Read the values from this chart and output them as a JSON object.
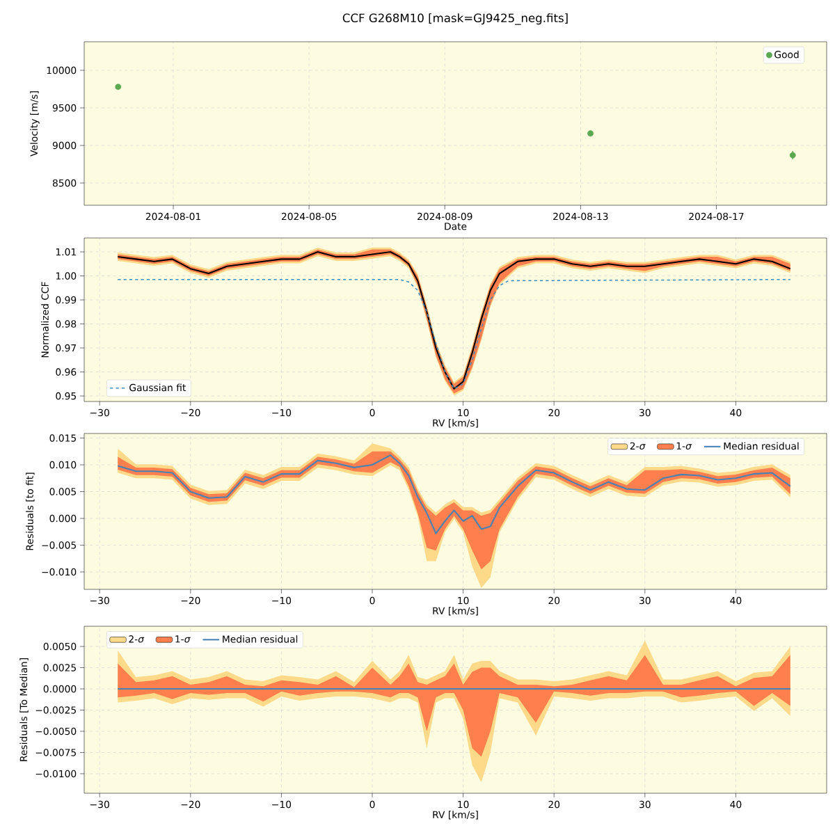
{
  "chart_data": [
    {
      "type": "scatter",
      "title": "CCF G268M10 [mask=GJ9425_neg.fits]",
      "xlabel": "Date",
      "ylabel": "Velocity [m/s]",
      "x": [
        "2024-07-30T09:00",
        "2024-08-13T07:00",
        "2024-08-19T06:00"
      ],
      "series": [
        {
          "name": "Good",
          "color": "#5aa84f",
          "values": [
            9780,
            9160,
            8870
          ],
          "errors": [
            25,
            25,
            55
          ]
        }
      ],
      "xlim": [
        "2024-07-29T09:00",
        "2024-08-20T06:00"
      ],
      "ylim": [
        8204,
        10380
      ],
      "xticks": [
        "2024-08-01",
        "2024-08-05",
        "2024-08-09",
        "2024-08-13",
        "2024-08-17"
      ],
      "yticks": [
        8500,
        9000,
        9500,
        10000
      ],
      "grid": true,
      "legend": "top right",
      "marker": "circle"
    },
    {
      "type": "line",
      "xlabel": "RV [km/s]",
      "ylabel": "Normalized CCF",
      "x": [
        -28,
        -26,
        -24,
        -22,
        -20,
        -18,
        -16,
        -14,
        -12,
        -10,
        -8,
        -6,
        -4,
        -2,
        0,
        2,
        3,
        4,
        5,
        6,
        7,
        8,
        9,
        10,
        11,
        12,
        13,
        14,
        16,
        18,
        20,
        22,
        24,
        26,
        28,
        30,
        32,
        34,
        36,
        38,
        40,
        42,
        44,
        46
      ],
      "series": [
        {
          "type": "area",
          "color": "#fdd98a",
          "values": [
            null,
            null,
            null,
            null,
            null,
            null,
            null,
            null,
            null,
            null,
            null,
            null,
            null,
            null,
            null,
            null,
            null,
            null,
            null,
            null,
            null,
            null,
            null,
            null,
            null,
            null,
            null,
            null,
            null,
            null,
            null,
            null,
            null,
            null,
            null,
            null,
            null,
            null,
            null,
            null,
            null,
            null,
            null,
            null
          ],
          "lower": [
            1.0062,
            1.0052,
            1.0042,
            1.0052,
            1.0012,
            0.9992,
            1.0022,
            1.0032,
            1.0042,
            1.0052,
            1.0052,
            1.0082,
            1.0062,
            1.0062,
            1.0072,
            1.0082,
            1.0062,
            1.0032,
            0.9952,
            0.9812,
            0.9662,
            0.9562,
            0.9502,
            0.9522,
            0.9612,
            0.9732,
            0.9872,
            0.9962,
            1.0032,
            1.0052,
            1.0052,
            1.0032,
            1.0022,
            1.0032,
            1.0022,
            1.0012,
            1.0032,
            1.0042,
            1.0052,
            1.0042,
            1.0032,
            1.0052,
            1.0042,
            1.0012
          ],
          "upper": [
            1.0098,
            1.0088,
            1.0078,
            1.0088,
            1.0048,
            1.0028,
            1.0058,
            1.0068,
            1.0078,
            1.0088,
            1.0088,
            1.0118,
            1.0098,
            1.0098,
            1.0118,
            1.0118,
            1.0098,
            1.0068,
            1.0008,
            0.9878,
            0.9728,
            0.9628,
            0.9558,
            0.9588,
            0.9708,
            0.9848,
            0.9968,
            1.0038,
            1.0078,
            1.0088,
            1.0088,
            1.0068,
            1.0058,
            1.0068,
            1.0058,
            1.0058,
            1.0068,
            1.0078,
            1.0088,
            1.0088,
            1.0068,
            1.0088,
            1.0088,
            1.0058
          ]
        },
        {
          "type": "area",
          "color": "#ff7f4f",
          "values": [
            null,
            null,
            null,
            null,
            null,
            null,
            null,
            null,
            null,
            null,
            null,
            null,
            null,
            null,
            null,
            null,
            null,
            null,
            null,
            null,
            null,
            null,
            null,
            null,
            null,
            null,
            null,
            null,
            null,
            null,
            null,
            null,
            null,
            null,
            null,
            null,
            null,
            null,
            null,
            null,
            null,
            null,
            null,
            null
          ],
          "lower": [
            1.007,
            1.006,
            1.005,
            1.006,
            1.002,
            1.0,
            1.003,
            1.004,
            1.005,
            1.006,
            1.006,
            1.009,
            1.007,
            1.007,
            1.008,
            1.009,
            1.007,
            1.004,
            0.996,
            0.982,
            0.967,
            0.957,
            0.951,
            0.953,
            0.962,
            0.974,
            0.988,
            0.997,
            1.004,
            1.006,
            1.006,
            1.004,
            1.003,
            1.004,
            1.003,
            1.002,
            1.004,
            1.005,
            1.006,
            1.005,
            1.004,
            1.006,
            1.005,
            1.002
          ],
          "upper": [
            1.009,
            1.008,
            1.007,
            1.008,
            1.004,
            1.002,
            1.005,
            1.006,
            1.007,
            1.008,
            1.008,
            1.011,
            1.009,
            1.009,
            1.011,
            1.011,
            1.009,
            1.006,
            1.0,
            0.987,
            0.972,
            0.962,
            0.955,
            0.958,
            0.97,
            0.984,
            0.996,
            1.003,
            1.007,
            1.008,
            1.008,
            1.006,
            1.005,
            1.006,
            1.005,
            1.005,
            1.006,
            1.007,
            1.008,
            1.008,
            1.006,
            1.008,
            1.008,
            1.005
          ]
        },
        {
          "type": "line",
          "color": "#000000",
          "values": [
            1.008,
            1.007,
            1.006,
            1.007,
            1.003,
            1.001,
            1.004,
            1.005,
            1.006,
            1.007,
            1.007,
            1.01,
            1.008,
            1.008,
            1.009,
            1.01,
            1.008,
            1.005,
            0.998,
            0.985,
            0.97,
            0.96,
            0.953,
            0.956,
            0.968,
            0.982,
            0.994,
            1.001,
            1.006,
            1.007,
            1.007,
            1.005,
            1.004,
            1.005,
            1.004,
            1.004,
            1.005,
            1.006,
            1.007,
            1.006,
            1.005,
            1.007,
            1.006,
            1.003
          ]
        },
        {
          "type": "line",
          "name": "Gaussian fit",
          "color": "#3a8bbf",
          "line_style": "dashed",
          "x": [
            -28,
            3,
            4,
            5,
            6,
            7,
            8,
            9,
            10,
            11,
            12,
            13,
            14,
            15,
            46
          ],
          "values": [
            0.9985,
            0.9985,
            0.9975,
            0.994,
            0.985,
            0.972,
            0.96,
            0.953,
            0.955,
            0.965,
            0.978,
            0.99,
            0.996,
            0.998,
            0.9985
          ]
        }
      ],
      "xlim": [
        -31.7,
        50.0
      ],
      "ylim": [
        0.9477,
        1.0158
      ],
      "xticks": [
        {
          "value": -30,
          "label": "−30"
        },
        {
          "value": -20,
          "label": "−20"
        },
        {
          "value": -10,
          "label": "−10"
        },
        0,
        10,
        20,
        30,
        40
      ],
      "yticks": [
        0.95,
        {
          "value": 0.96,
          "label": "0.96"
        },
        {
          "value": 0.97,
          "label": "0.97"
        },
        {
          "value": 0.98,
          "label": "0.98"
        },
        {
          "value": 0.99,
          "label": "0.99"
        },
        {
          "value": 1.0,
          "label": "1.00"
        },
        1.01
      ],
      "grid": true,
      "legend": "bottom left"
    },
    {
      "type": "line",
      "xlabel": "RV [km/s]",
      "ylabel": "Residuals [to fit]",
      "x": [
        -28,
        -26,
        -24,
        -22,
        -20,
        -18,
        -16,
        -14,
        -12,
        -10,
        -8,
        -6,
        -4,
        -2,
        0,
        2,
        3,
        4,
        5,
        6,
        7,
        8,
        9,
        10,
        11,
        12,
        13,
        14,
        16,
        18,
        20,
        22,
        24,
        26,
        28,
        30,
        32,
        34,
        36,
        38,
        40,
        42,
        44,
        46
      ],
      "series": [
        {
          "type": "area",
          "name": "2-*σ*",
          "color": "#fdd98a",
          "values": [
            null,
            null,
            null,
            null,
            null,
            null,
            null,
            null,
            null,
            null,
            null,
            null,
            null,
            null,
            null,
            null,
            null,
            null,
            null,
            null,
            null,
            null,
            null,
            null,
            null,
            null,
            null,
            null,
            null,
            null,
            null,
            null,
            null,
            null,
            null,
            null,
            null,
            null,
            null,
            null,
            null,
            null,
            null,
            null
          ],
          "lower": [
            0.0085,
            0.0075,
            0.0075,
            0.0072,
            0.0037,
            0.0025,
            0.0027,
            0.0065,
            0.0055,
            0.007,
            0.007,
            0.0095,
            0.009,
            0.0082,
            0.0079,
            0.0099,
            0.009,
            0.0054,
            0.0004,
            -0.008,
            -0.008,
            -0.0026,
            -0.0001,
            -0.0026,
            -0.009,
            -0.013,
            -0.011,
            -0.0026,
            0.0034,
            0.0077,
            0.0072,
            0.0055,
            0.004,
            0.0055,
            0.0042,
            0.004,
            0.0062,
            0.0069,
            0.0067,
            0.0059,
            0.0062,
            0.007,
            0.0072,
            0.0039
          ],
          "upper": [
            0.013,
            0.0101,
            0.0101,
            0.0098,
            0.0063,
            0.0051,
            0.0053,
            0.0091,
            0.0081,
            0.0096,
            0.0096,
            0.0121,
            0.0116,
            0.0108,
            0.014,
            0.0131,
            0.0116,
            0.0096,
            0.0056,
            0.0026,
            0.0011,
            0.0026,
            0.0036,
            0.0021,
            0.0021,
            0.0011,
            0.0016,
            0.0036,
            0.0076,
            0.0103,
            0.0098,
            0.0081,
            0.0066,
            0.0081,
            0.0068,
            0.0096,
            0.0096,
            0.0098,
            0.0093,
            0.0085,
            0.0088,
            0.0096,
            0.0101,
            0.0081
          ]
        },
        {
          "type": "area",
          "name": "1-*σ*",
          "color": "#ff7f4f",
          "values": [
            null,
            null,
            null,
            null,
            null,
            null,
            null,
            null,
            null,
            null,
            null,
            null,
            null,
            null,
            null,
            null,
            null,
            null,
            null,
            null,
            null,
            null,
            null,
            null,
            null,
            null,
            null,
            null,
            null,
            null,
            null,
            null,
            null,
            null,
            null,
            null,
            null,
            null,
            null,
            null,
            null,
            null,
            null,
            null
          ],
          "lower": [
            0.0091,
            0.0081,
            0.0081,
            0.0078,
            0.0043,
            0.0031,
            0.0033,
            0.0071,
            0.0061,
            0.0076,
            0.0076,
            0.0101,
            0.0096,
            0.0088,
            0.0085,
            0.0105,
            0.0096,
            0.006,
            0.001,
            -0.0055,
            -0.006,
            -0.002,
            0.0005,
            -0.002,
            -0.006,
            -0.0095,
            -0.008,
            -0.002,
            0.004,
            0.0083,
            0.0078,
            0.0061,
            0.0046,
            0.0061,
            0.0048,
            0.0046,
            0.0068,
            0.0075,
            0.0073,
            0.0065,
            0.0068,
            0.0076,
            0.0078,
            0.0045
          ],
          "upper": [
            0.0115,
            0.0095,
            0.0095,
            0.0092,
            0.0057,
            0.0045,
            0.0047,
            0.0085,
            0.0075,
            0.009,
            0.009,
            0.0115,
            0.011,
            0.0102,
            0.0125,
            0.0125,
            0.011,
            0.009,
            0.005,
            0.002,
            0.0005,
            0.002,
            0.003,
            0.0015,
            0.0015,
            0.0005,
            0.001,
            0.003,
            0.007,
            0.0097,
            0.0092,
            0.0075,
            0.006,
            0.0075,
            0.0062,
            0.009,
            0.009,
            0.0092,
            0.0087,
            0.0079,
            0.0082,
            0.009,
            0.0095,
            0.0075
          ]
        },
        {
          "type": "line",
          "name": "Median residual",
          "color": "#4682b4",
          "values": [
            0.0098,
            0.0088,
            0.0088,
            0.0085,
            0.005,
            0.0038,
            0.004,
            0.0078,
            0.0068,
            0.0083,
            0.0083,
            0.0108,
            0.0103,
            0.0095,
            0.01,
            0.0118,
            0.0103,
            0.008,
            0.004,
            0.001,
            -0.0028,
            -0.0005,
            0.0015,
            -0.0005,
            0.0005,
            -0.002,
            -0.0015,
            0.002,
            0.006,
            0.009,
            0.0085,
            0.0068,
            0.0053,
            0.0068,
            0.0055,
            0.0053,
            0.0075,
            0.0082,
            0.008,
            0.0072,
            0.0075,
            0.0083,
            0.0085,
            0.006
          ]
        }
      ],
      "xlim": [
        -31.7,
        50.0
      ],
      "ylim": [
        -0.01325,
        0.01585
      ],
      "xticks": [
        {
          "value": -30,
          "label": "−30"
        },
        {
          "value": -20,
          "label": "−20"
        },
        {
          "value": -10,
          "label": "−10"
        },
        0,
        10,
        20,
        30,
        40
      ],
      "yticks": [
        {
          "value": -0.01,
          "label": "−0.010"
        },
        {
          "value": -0.005,
          "label": "−0.005"
        },
        {
          "value": 0,
          "label": "0.000"
        },
        0.005,
        {
          "value": 0.01,
          "label": "0.010"
        },
        0.015
      ],
      "grid": true,
      "legend": "top right"
    },
    {
      "type": "line",
      "xlabel": "RV [km/s]",
      "ylabel": "Residuals [To Median]",
      "x": [
        -28,
        -26,
        -24,
        -22,
        -20,
        -18,
        -16,
        -14,
        -12,
        -10,
        -8,
        -6,
        -4,
        -2,
        0,
        2,
        3,
        4,
        5,
        6,
        7,
        8,
        9,
        10,
        11,
        12,
        13,
        14,
        16,
        18,
        20,
        22,
        24,
        26,
        28,
        30,
        32,
        34,
        36,
        38,
        40,
        42,
        44,
        46
      ],
      "series": [
        {
          "type": "area",
          "name": "2-*σ*",
          "color": "#fdd98a",
          "values": [
            null,
            null,
            null,
            null,
            null,
            null,
            null,
            null,
            null,
            null,
            null,
            null,
            null,
            null,
            null,
            null,
            null,
            null,
            null,
            null,
            null,
            null,
            null,
            null,
            null,
            null,
            null,
            null,
            null,
            null,
            null,
            null,
            null,
            null,
            null,
            null,
            null,
            null,
            null,
            null,
            null,
            null,
            null,
            null
          ],
          "lower": [
            -0.0016,
            -0.0014,
            -0.0011,
            -0.0018,
            -0.0011,
            -0.0013,
            -0.0011,
            -0.0011,
            -0.0021,
            -0.0009,
            -0.0014,
            -0.0011,
            -0.0009,
            -0.0009,
            -0.0011,
            -0.0016,
            -0.0011,
            -0.0011,
            -0.0016,
            -0.007,
            -0.0016,
            -0.0011,
            -0.0011,
            -0.0035,
            -0.009,
            -0.011,
            -0.0075,
            -0.0011,
            -0.0016,
            -0.0055,
            -0.0009,
            -0.0011,
            -0.0014,
            -0.0011,
            -0.0011,
            -0.0009,
            -0.0009,
            -0.0016,
            -0.0014,
            -0.0011,
            -0.0009,
            -0.0026,
            -0.0011,
            -0.0032
          ],
          "upper": [
            0.0045,
            0.0014,
            0.0016,
            0.0021,
            0.0011,
            0.0014,
            0.0021,
            0.0011,
            0.0009,
            0.0016,
            0.0014,
            0.0011,
            0.0021,
            0.0008,
            0.0033,
            0.0011,
            0.0021,
            0.004,
            0.0014,
            0.0011,
            0.0016,
            0.0021,
            0.004,
            0.0011,
            0.003,
            0.0033,
            0.0033,
            0.0021,
            0.0011,
            0.0011,
            0.0009,
            0.0011,
            0.0016,
            0.0021,
            0.0016,
            0.0057,
            0.0011,
            0.0011,
            0.0016,
            0.0021,
            0.0009,
            0.0019,
            0.0021,
            0.005
          ]
        },
        {
          "type": "area",
          "name": "1-*σ*",
          "color": "#ff7f4f",
          "values": [
            null,
            null,
            null,
            null,
            null,
            null,
            null,
            null,
            null,
            null,
            null,
            null,
            null,
            null,
            null,
            null,
            null,
            null,
            null,
            null,
            null,
            null,
            null,
            null,
            null,
            null,
            null,
            null,
            null,
            null,
            null,
            null,
            null,
            null,
            null,
            null,
            null,
            null,
            null,
            null,
            null,
            null,
            null,
            null
          ],
          "lower": [
            -0.001,
            -0.0008,
            -0.0005,
            -0.0012,
            -0.0005,
            -0.0007,
            -0.0005,
            -0.0005,
            -0.0015,
            -0.0003,
            -0.0008,
            -0.0005,
            -0.0003,
            -0.0003,
            -0.0005,
            -0.001,
            -0.0005,
            -0.0005,
            -0.001,
            -0.005,
            -0.001,
            -0.0005,
            -0.0005,
            -0.0025,
            -0.007,
            -0.008,
            -0.005,
            -0.0005,
            -0.001,
            -0.004,
            -0.0003,
            -0.0005,
            -0.0008,
            -0.0005,
            -0.0005,
            -0.0003,
            -0.0003,
            -0.001,
            -0.0008,
            -0.0005,
            -0.0003,
            -0.002,
            -0.0005,
            -0.002
          ],
          "upper": [
            0.003,
            0.0008,
            0.001,
            0.0015,
            0.0005,
            0.0008,
            0.0015,
            0.0005,
            0.0003,
            0.001,
            0.0008,
            0.0005,
            0.0015,
            0.0002,
            0.0025,
            0.0005,
            0.0015,
            0.003,
            0.0008,
            0.0005,
            0.001,
            0.0015,
            0.003,
            0.0005,
            0.002,
            0.0025,
            0.0025,
            0.0015,
            0.0005,
            0.0005,
            0.0003,
            0.0005,
            0.001,
            0.0015,
            0.001,
            0.004,
            0.0005,
            0.0005,
            0.001,
            0.0015,
            0.0003,
            0.0013,
            0.0015,
            0.004
          ]
        },
        {
          "type": "line",
          "name": "Median residual",
          "color": "#4682b4",
          "values": [
            0,
            0,
            0,
            0,
            0,
            0,
            0,
            0,
            0,
            0,
            0,
            0,
            0,
            0,
            0,
            0,
            0,
            0,
            0,
            0,
            0,
            0,
            0,
            0,
            0,
            0,
            0,
            0,
            0,
            0,
            0,
            0,
            0,
            0,
            0,
            0,
            0,
            0,
            0,
            0,
            0,
            0,
            0,
            0
          ]
        }
      ],
      "xlim": [
        -31.7,
        50.0
      ],
      "ylim": [
        -0.0123,
        0.00738
      ],
      "xticks": [
        {
          "value": -30,
          "label": "−30"
        },
        {
          "value": -20,
          "label": "−20"
        },
        {
          "value": -10,
          "label": "−10"
        },
        0,
        10,
        20,
        30,
        40
      ],
      "yticks": [
        {
          "value": -0.01,
          "label": "−0.0100"
        },
        {
          "value": -0.0075,
          "label": "−0.0075"
        },
        {
          "value": -0.005,
          "label": "−0.0050"
        },
        {
          "value": -0.0025,
          "label": "−0.0025"
        },
        {
          "value": 0,
          "label": "0.0000"
        },
        {
          "value": 0.0025,
          "label": "0.0025"
        },
        {
          "value": 0.005,
          "label": "0.0050"
        }
      ],
      "grid": true,
      "legend": "top left"
    }
  ]
}
